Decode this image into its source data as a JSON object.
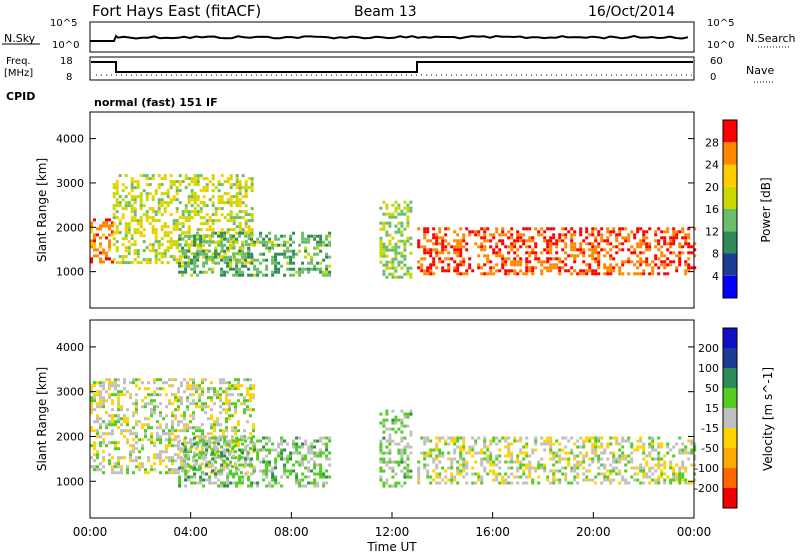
{
  "header": {
    "station": "Fort Hays East (fitACF)",
    "beam": "Beam 13",
    "date": "16/Oct/2014"
  },
  "sky_panel": {
    "left_label": "N.Sky",
    "right_label": "N.Search",
    "left_ticks": [
      "10^5",
      "10^0"
    ],
    "right_ticks": [
      "10^5",
      "10^0"
    ]
  },
  "freq_panel": {
    "left_label_line1": "Freq.",
    "left_label_line2": "[MHz]",
    "right_label": "Nave",
    "left_ticks": [
      "18",
      "8"
    ],
    "right_ticks": [
      "60",
      "0"
    ],
    "cpid_label": "CPID",
    "mode_text": "normal (fast) 151 IF"
  },
  "chart_data": [
    {
      "type": "heatmap",
      "title": "",
      "xlabel": "Time UT",
      "ylabel": "Slant Range [km]",
      "x_ticks": [
        "00:00",
        "04:00",
        "08:00",
        "12:00",
        "16:00",
        "20:00",
        "00:00"
      ],
      "xlim_hours": [
        0,
        24
      ],
      "y_ticks": [
        1000,
        2000,
        3000,
        4000
      ],
      "ylim": [
        180,
        4600
      ],
      "colorbar": {
        "label": "Power [dB]",
        "ticks": [
          "28",
          "24",
          "20",
          "16",
          "12",
          "8",
          "4"
        ],
        "range": [
          0,
          32
        ],
        "colors": [
          "#0000ff",
          "#1e3c96",
          "#2e8b57",
          "#6abe6a",
          "#c8d800",
          "#ffcc00",
          "#ff8800",
          "#ff0000"
        ]
      },
      "echo_regions": [
        {
          "t0": 0.0,
          "t1": 0.9,
          "r0": 1200,
          "r1": 2200,
          "value": 26
        },
        {
          "t0": 0.9,
          "t1": 6.5,
          "r0": 1200,
          "r1": 3200,
          "value": 18
        },
        {
          "t0": 3.5,
          "t1": 9.5,
          "r0": 900,
          "r1": 1900,
          "value": 13
        },
        {
          "t0": 11.5,
          "t1": 12.8,
          "r0": 900,
          "r1": 2600,
          "value": 16
        },
        {
          "t0": 13.0,
          "t1": 24.0,
          "r0": 950,
          "r1": 2000,
          "value": 28
        }
      ]
    },
    {
      "type": "heatmap",
      "title": "",
      "xlabel": "Time UT",
      "ylabel": "Slant Range [km]",
      "x_ticks": [
        "00:00",
        "04:00",
        "08:00",
        "12:00",
        "16:00",
        "20:00",
        "00:00"
      ],
      "xlim_hours": [
        0,
        24
      ],
      "y_ticks": [
        1000,
        2000,
        3000,
        4000
      ],
      "ylim": [
        180,
        4600
      ],
      "colorbar": {
        "label": "Velocity [m s^-1]",
        "ticks": [
          "200",
          "100",
          "50",
          "15",
          "-15",
          "-50",
          "-100",
          "-200"
        ],
        "range": [
          -250,
          250
        ],
        "colors": [
          "#ee0000",
          "#ff6600",
          "#ffaa00",
          "#ffd400",
          "#c0c0c0",
          "#55cc22",
          "#2e8b57",
          "#1e3c96",
          "#1010c8"
        ]
      },
      "echo_regions": [
        {
          "t0": 0.0,
          "t1": 6.5,
          "r0": 1200,
          "r1": 3300,
          "value": 0
        },
        {
          "t0": 3.5,
          "t1": 9.5,
          "r0": 900,
          "r1": 2000,
          "value": 40
        },
        {
          "t0": 11.5,
          "t1": 12.8,
          "r0": 900,
          "r1": 2600,
          "value": 40
        },
        {
          "t0": 13.0,
          "t1": 24.0,
          "r0": 950,
          "r1": 2000,
          "value": 0
        }
      ]
    }
  ]
}
